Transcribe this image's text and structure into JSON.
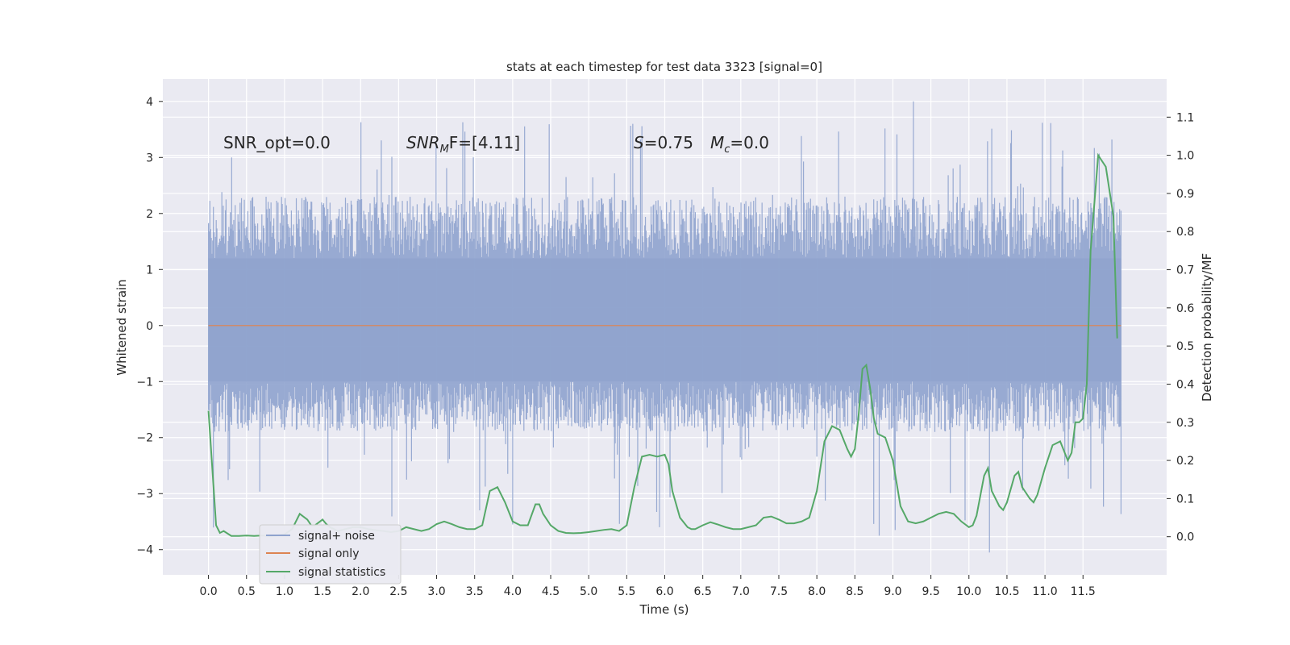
{
  "chart_data": {
    "type": "line",
    "title": "stats at each timestep for test data 3323 [signal=0]",
    "xlabel": "Time (s)",
    "ylabel": "Whitened strain",
    "ylabel_right": "Detection probability/MF",
    "xlim": [
      -0.6,
      12.6
    ],
    "ylim": [
      -4.45,
      4.4
    ],
    "ylim_right": [
      -0.1,
      1.2
    ],
    "x_ticks": [
      0.0,
      0.5,
      1.0,
      1.5,
      2.0,
      2.5,
      3.0,
      3.5,
      4.0,
      4.5,
      5.0,
      5.5,
      6.0,
      6.5,
      7.0,
      7.5,
      8.0,
      8.5,
      9.0,
      9.5,
      10.0,
      10.5,
      11.0,
      11.5
    ],
    "x_tick_labels": [
      "0.0",
      "0.5",
      "1.0",
      "1.5",
      "2.0",
      "2.5",
      "3.0",
      "3.5",
      "4.0",
      "4.5",
      "5.0",
      "5.5",
      "6.0",
      "6.5",
      "7.0",
      "7.5",
      "8.0",
      "8.5",
      "9.0",
      "9.5",
      "10.0",
      "10.5",
      "11.0",
      "11.5"
    ],
    "y_ticks": [
      4,
      3,
      2,
      1,
      0,
      -1,
      -2,
      -3,
      -4
    ],
    "y_tick_labels": [
      "4",
      "3",
      "2",
      "1",
      "0",
      "−1",
      "−2",
      "−3",
      "−4"
    ],
    "y_right_ticks": [
      1.1,
      1.0,
      0.9,
      0.8,
      0.7,
      0.6,
      0.5,
      0.4,
      0.3,
      0.2,
      0.1,
      0.0
    ],
    "y_right_tick_labels": [
      "1.1",
      "1.0",
      "0.9",
      "0.8",
      "0.7",
      "0.6",
      "0.5",
      "0.4",
      "0.3",
      "0.2",
      "0.1",
      "0.0"
    ],
    "grid": true,
    "legend_position": "lower-left",
    "annotations": {
      "snr_opt": "SNR_opt=0.0",
      "snr_mf_main": "SNR",
      "snr_mf_sub": "M",
      "snr_mf_rest": "F=[4.11]",
      "s_main": "S",
      "s_rest": "=0.75",
      "mc_main": "M",
      "mc_sub": "c",
      "mc_rest": "=0.0"
    },
    "series": [
      {
        "name": "signal+ noise",
        "color": "#8fa3ce",
        "axis": "left",
        "x_range": [
          0.0,
          12.0
        ],
        "typical_range": [
          -1.9,
          2.3
        ],
        "max_spike": 4.0,
        "min_spike": -4.05
      },
      {
        "name": "signal only",
        "color": "#dd8452",
        "axis": "left",
        "x": [
          0.0,
          12.0
        ],
        "values": [
          0.0,
          0.0
        ]
      },
      {
        "name": "signal statistics",
        "color": "#55a868",
        "axis": "right",
        "x": [
          0.0,
          0.1,
          0.15,
          0.2,
          0.3,
          0.4,
          0.5,
          0.6,
          0.7,
          0.8,
          0.9,
          1.0,
          1.1,
          1.2,
          1.3,
          1.35,
          1.4,
          1.5,
          1.55,
          1.6,
          1.65,
          1.7,
          1.8,
          1.9,
          2.0,
          2.1,
          2.2,
          2.3,
          2.4,
          2.5,
          2.6,
          2.7,
          2.8,
          2.9,
          3.0,
          3.1,
          3.2,
          3.3,
          3.4,
          3.5,
          3.6,
          3.7,
          3.8,
          3.9,
          4.0,
          4.1,
          4.2,
          4.3,
          4.35,
          4.4,
          4.5,
          4.6,
          4.7,
          4.8,
          4.9,
          5.0,
          5.1,
          5.2,
          5.3,
          5.4,
          5.5,
          5.6,
          5.7,
          5.8,
          5.9,
          6.0,
          6.05,
          6.1,
          6.2,
          6.3,
          6.35,
          6.4,
          6.5,
          6.6,
          6.7,
          6.8,
          6.9,
          7.0,
          7.1,
          7.2,
          7.3,
          7.4,
          7.5,
          7.6,
          7.7,
          7.8,
          7.9,
          8.0,
          8.1,
          8.2,
          8.3,
          8.4,
          8.45,
          8.5,
          8.55,
          8.6,
          8.65,
          8.7,
          8.75,
          8.8,
          8.9,
          9.0,
          9.1,
          9.2,
          9.3,
          9.4,
          9.5,
          9.6,
          9.7,
          9.8,
          9.9,
          10.0,
          10.05,
          10.1,
          10.2,
          10.25,
          10.3,
          10.4,
          10.45,
          10.5,
          10.6,
          10.65,
          10.7,
          10.8,
          10.85,
          10.9,
          11.0,
          11.1,
          11.2,
          11.3,
          11.35,
          11.4,
          11.45,
          11.5,
          11.55,
          11.6,
          11.7,
          11.8,
          11.9,
          11.95
        ],
        "values": [
          0.33,
          0.03,
          0.01,
          0.015,
          0.002,
          0.002,
          0.003,
          0.002,
          0.003,
          0.002,
          0.003,
          0.006,
          0.02,
          0.06,
          0.045,
          0.03,
          0.03,
          0.045,
          0.033,
          0.025,
          0.02,
          0.015,
          0.02,
          0.025,
          0.025,
          0.02,
          0.017,
          0.015,
          0.012,
          0.015,
          0.025,
          0.02,
          0.015,
          0.02,
          0.033,
          0.04,
          0.033,
          0.025,
          0.02,
          0.02,
          0.03,
          0.12,
          0.13,
          0.09,
          0.04,
          0.03,
          0.03,
          0.085,
          0.085,
          0.06,
          0.03,
          0.015,
          0.01,
          0.009,
          0.01,
          0.012,
          0.015,
          0.018,
          0.02,
          0.015,
          0.03,
          0.13,
          0.21,
          0.215,
          0.21,
          0.215,
          0.19,
          0.12,
          0.05,
          0.025,
          0.02,
          0.02,
          0.03,
          0.038,
          0.032,
          0.025,
          0.02,
          0.02,
          0.025,
          0.03,
          0.05,
          0.053,
          0.045,
          0.035,
          0.035,
          0.04,
          0.05,
          0.12,
          0.25,
          0.29,
          0.28,
          0.23,
          0.21,
          0.23,
          0.32,
          0.44,
          0.45,
          0.39,
          0.31,
          0.27,
          0.26,
          0.2,
          0.08,
          0.04,
          0.035,
          0.04,
          0.05,
          0.06,
          0.065,
          0.06,
          0.04,
          0.025,
          0.03,
          0.055,
          0.16,
          0.18,
          0.12,
          0.08,
          0.07,
          0.09,
          0.16,
          0.17,
          0.13,
          0.1,
          0.09,
          0.11,
          0.18,
          0.24,
          0.25,
          0.2,
          0.22,
          0.3,
          0.3,
          0.31,
          0.4,
          0.75,
          1.0,
          0.97,
          0.84,
          0.52
        ]
      }
    ]
  }
}
